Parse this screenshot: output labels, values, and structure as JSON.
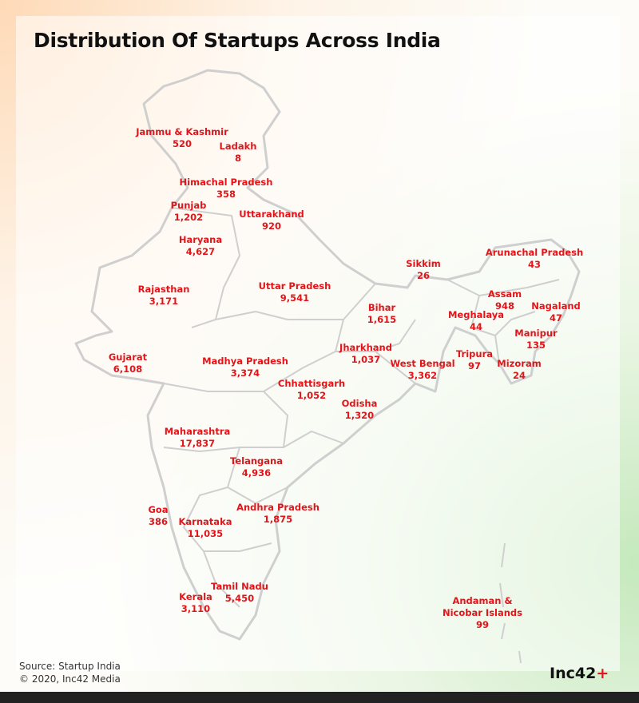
{
  "title": "Distribution Of Startups Across India",
  "states": [
    {
      "name": "Jammu & Kashmir",
      "value": "520"
    },
    {
      "name": "Ladakh",
      "value": "8"
    },
    {
      "name": "Himachal Pradesh",
      "value": "358"
    },
    {
      "name": "Punjab",
      "value": "1,202"
    },
    {
      "name": "Uttarakhand",
      "value": "920"
    },
    {
      "name": "Haryana",
      "value": "4,627"
    },
    {
      "name": "Rajasthan",
      "value": "3,171"
    },
    {
      "name": "Uttar Pradesh",
      "value": "9,541"
    },
    {
      "name": "Sikkim",
      "value": "26"
    },
    {
      "name": "Arunachal Pradesh",
      "value": "43"
    },
    {
      "name": "Bihar",
      "value": "1,615"
    },
    {
      "name": "Assam",
      "value": "948"
    },
    {
      "name": "Nagaland",
      "value": "47"
    },
    {
      "name": "Meghalaya",
      "value": "44"
    },
    {
      "name": "Manipur",
      "value": "135"
    },
    {
      "name": "Gujarat",
      "value": "6,108"
    },
    {
      "name": "Madhya Pradesh",
      "value": "3,374"
    },
    {
      "name": "Jharkhand",
      "value": "1,037"
    },
    {
      "name": "West Bengal",
      "value": "3,362"
    },
    {
      "name": "Tripura",
      "value": "97"
    },
    {
      "name": "Mizoram",
      "value": "24"
    },
    {
      "name": "Chhattisgarh",
      "value": "1,052"
    },
    {
      "name": "Odisha",
      "value": "1,320"
    },
    {
      "name": "Maharashtra",
      "value": "17,837"
    },
    {
      "name": "Telangana",
      "value": "4,936"
    },
    {
      "name": "Goa",
      "value": "386"
    },
    {
      "name": "Andhra Pradesh",
      "value": "1,875"
    },
    {
      "name": "Karnataka",
      "value": "11,035"
    },
    {
      "name": "Tamil Nadu",
      "value": "5,450"
    },
    {
      "name": "Kerala",
      "value": "3,110"
    },
    {
      "name": "Andaman & Nicobar Islands",
      "value": "99"
    }
  ],
  "source": "Source: Startup India",
  "copyright": "© 2020, Inc42 Media",
  "logo": {
    "text": "Inc42",
    "mark": "+"
  }
}
